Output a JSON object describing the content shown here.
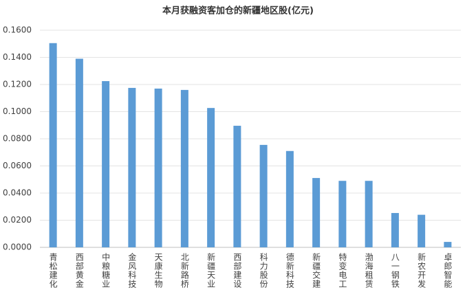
{
  "chart_data": {
    "type": "bar",
    "title": "本月获融资客加仓的新疆地区股(亿元)",
    "categories": [
      "青松建化",
      "西部黄金",
      "中粮糖业",
      "金风科技",
      "天康生物",
      "北新路桥",
      "新疆天业",
      "西部建设",
      "科力股份",
      "德新科技",
      "新疆交建",
      "特变电工",
      "渤海租赁",
      "八一钢铁",
      "新农开发",
      "卓郎智能"
    ],
    "values": [
      0.1505,
      0.139,
      0.1225,
      0.1175,
      0.117,
      0.116,
      0.1027,
      0.0896,
      0.0755,
      0.071,
      0.0511,
      0.049,
      0.049,
      0.0253,
      0.024,
      0.004
    ],
    "color": "#5b9bd5",
    "ylim": [
      0,
      0.16
    ],
    "yticks": [
      {
        "value": 0,
        "label": "0.0000"
      },
      {
        "value": 0.02,
        "label": "0.0200"
      },
      {
        "value": 0.04,
        "label": "0.0400"
      },
      {
        "value": 0.06,
        "label": "0.0600"
      },
      {
        "value": 0.08,
        "label": "0.0800"
      },
      {
        "value": 0.1,
        "label": "0.1000"
      },
      {
        "value": 0.12,
        "label": "0.1200"
      },
      {
        "value": 0.14,
        "label": "0.1400"
      },
      {
        "value": 0.16,
        "label": "0.1600"
      }
    ],
    "grid": true
  }
}
